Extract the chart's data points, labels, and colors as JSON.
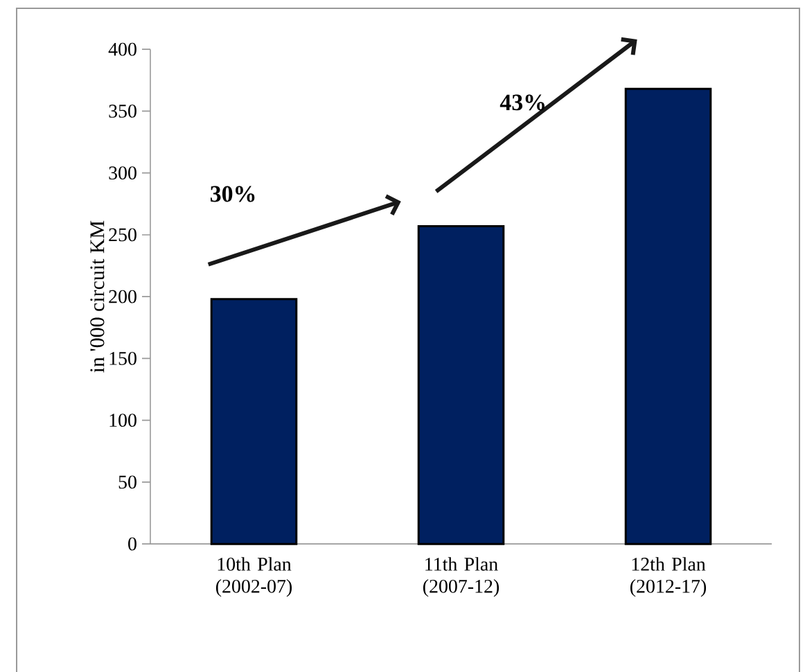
{
  "chart_data": {
    "type": "bar",
    "ylabel": "in '000 circuit KM",
    "categories": [
      "10th Plan (2002-07)",
      "11th Plan (2007-12)",
      "12th Plan (2012-17)"
    ],
    "values": [
      198,
      257,
      368
    ],
    "color": "#002060",
    "ylim": [
      0,
      400
    ],
    "yticks": [
      0,
      50,
      100,
      150,
      200,
      250,
      300,
      350,
      400
    ],
    "grid": false,
    "annotations": [
      "30%",
      "43%"
    ]
  }
}
